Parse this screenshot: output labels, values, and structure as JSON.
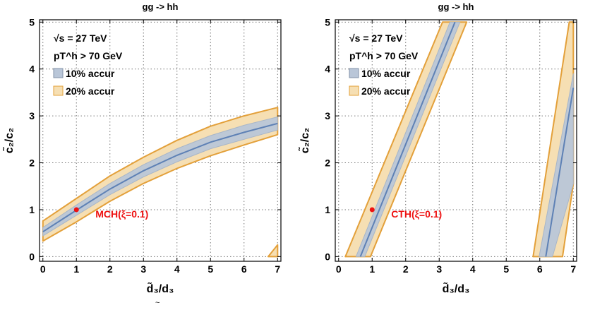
{
  "figure": {
    "panels": [
      {
        "title": "gg -> hh",
        "xlabel": "d̃₃/d₃",
        "ylabel": "c̃₂/c₂",
        "legend_line1": "√s = 27 TeV",
        "legend_line2": "pT^h > 70 GeV",
        "point_label": "MCH(ξ=0.1)"
      },
      {
        "title": "gg -> hh",
        "xlabel": "d̃₃/d₃",
        "ylabel": "c̃₂/c₂",
        "legend_line1": "√s = 27 TeV",
        "legend_line2": "pT^h > 70 GeV",
        "point_label": "CTH(ξ=0.1)"
      }
    ],
    "stray_tilde": "~"
  },
  "chart_data": [
    {
      "type": "area",
      "title": "gg -> hh",
      "xlabel": "d̃₃/d₃",
      "ylabel": "c̃₂/c₂",
      "xlim": [
        -0.1,
        7.1
      ],
      "ylim": [
        -0.1,
        5.05
      ],
      "xticks": [
        0,
        1,
        2,
        3,
        4,
        5,
        6,
        7
      ],
      "yticks": [
        0,
        1,
        2,
        3,
        4,
        5
      ],
      "grid": true,
      "legend_position": "top-left",
      "legend": [
        "10% accur",
        "20% accur"
      ],
      "colors": {
        "accur10_fill": "#b9c6d8",
        "accur20_fill": "#f6dfb3",
        "accur20_edge": "#e3a03a",
        "center_line": "#5e81b5",
        "point": "#ee1111",
        "point_label": "#ee1111"
      },
      "series": [
        {
          "name": "10% accur",
          "upper": {
            "x": [
              0,
              1,
              2,
              3,
              4,
              5,
              6,
              7
            ],
            "y": [
              0.62,
              1.1,
              1.56,
              1.96,
              2.3,
              2.58,
              2.8,
              2.98
            ]
          },
          "lower": {
            "x": [
              0,
              1,
              2,
              3,
              4,
              5,
              6,
              7
            ],
            "y": [
              0.44,
              0.88,
              1.32,
              1.7,
              2.02,
              2.3,
              2.5,
              2.7
            ]
          }
        },
        {
          "name": "20% accur",
          "upper": {
            "x": [
              0,
              1,
              2,
              3,
              4,
              5,
              6,
              7
            ],
            "y": [
              0.76,
              1.24,
              1.72,
              2.12,
              2.48,
              2.78,
              3.0,
              3.18
            ]
          },
          "lower": {
            "x": [
              0,
              1,
              2,
              3,
              4,
              5,
              6,
              7
            ],
            "y": [
              0.33,
              0.74,
              1.18,
              1.56,
              1.88,
              2.15,
              2.38,
              2.6
            ]
          }
        },
        {
          "name": "20% accur (corner region)",
          "polygon": {
            "x": [
              6.72,
              7.0,
              7.0
            ],
            "y": [
              0.0,
              0.0,
              0.25
            ]
          }
        }
      ],
      "center_line": {
        "x": [
          0,
          1,
          2,
          3,
          4,
          5,
          6,
          7
        ],
        "y": [
          0.53,
          0.99,
          1.44,
          1.83,
          2.16,
          2.44,
          2.65,
          2.84
        ]
      },
      "point": {
        "x": 1,
        "y": 1,
        "label": "MCH(ξ=0.1)"
      }
    },
    {
      "type": "area",
      "title": "gg -> hh",
      "xlabel": "d̃₃/d₃",
      "ylabel": "c̃₂/c₂",
      "xlim": [
        -0.1,
        7.1
      ],
      "ylim": [
        -0.1,
        5.05
      ],
      "xticks": [
        0,
        1,
        2,
        3,
        4,
        5,
        6,
        7
      ],
      "yticks": [
        0,
        1,
        2,
        3,
        4,
        5
      ],
      "grid": true,
      "legend_position": "top-left",
      "legend": [
        "10% accur",
        "20% accur"
      ],
      "colors": {
        "accur10_fill": "#b9c6d8",
        "accur20_fill": "#f6dfb3",
        "accur20_edge": "#e3a03a",
        "center_line": "#5e81b5",
        "point": "#ee1111",
        "point_label": "#ee1111"
      },
      "series": [
        {
          "name": "20% accur (left band)",
          "polygon": {
            "x": [
              0.2,
              0.95,
              3.82,
              3.1
            ],
            "y": [
              0.0,
              0.0,
              5.0,
              5.0
            ]
          }
        },
        {
          "name": "10% accur (left band)",
          "polygon": {
            "x": [
              0.52,
              0.78,
              3.62,
              3.32
            ],
            "y": [
              0.0,
              0.0,
              5.0,
              5.0
            ]
          }
        },
        {
          "name": "20% accur (right band)",
          "polygon": {
            "x": [
              5.8,
              6.68,
              7.0,
              7.0,
              6.88
            ],
            "y": [
              0.0,
              0.0,
              1.55,
              5.0,
              5.0
            ]
          }
        },
        {
          "name": "10% accur (right band)",
          "polygon": {
            "x": [
              5.98,
              6.38,
              7.0,
              7.0
            ],
            "y": [
              0.0,
              0.0,
              1.55,
              3.9
            ]
          }
        }
      ],
      "center_lines": [
        {
          "x": [
            0.65,
            3.47
          ],
          "y": [
            0.0,
            5.0
          ]
        },
        {
          "x": [
            6.18,
            7.0
          ],
          "y": [
            0.0,
            3.6
          ]
        }
      ],
      "point": {
        "x": 1,
        "y": 1,
        "label": "CTH(ξ=0.1)"
      }
    }
  ]
}
